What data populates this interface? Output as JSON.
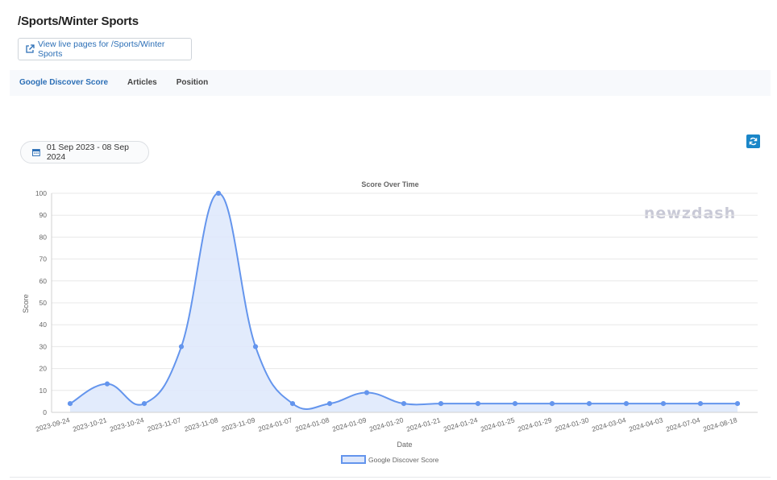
{
  "page": {
    "title": "/Sports/Winter Sports",
    "live_button_label": "View live pages for /Sports/Winter Sports"
  },
  "tabs": [
    {
      "label": "Google Discover Score",
      "active": true
    },
    {
      "label": "Articles",
      "active": false
    },
    {
      "label": "Position",
      "active": false
    }
  ],
  "date_range": "01 Sep 2023 - 08 Sep 2024",
  "watermark": "newzdash",
  "colors": {
    "accent": "#2c6fb6",
    "series_line": "#6495ed",
    "series_fill": "#dde7fb",
    "refresh_button": "#1a86c8"
  },
  "icons": {
    "live_button": "external-link-icon",
    "date_chip": "calendar-icon",
    "refresh": "refresh-icon"
  },
  "chart_data": {
    "type": "area",
    "title": "Score Over Time",
    "xlabel": "Date",
    "ylabel": "Score",
    "ylim": [
      0,
      100
    ],
    "yticks": [
      0,
      10,
      20,
      30,
      40,
      50,
      60,
      70,
      80,
      90,
      100
    ],
    "grid": true,
    "legend_position": "bottom",
    "categories": [
      "2023-09-24",
      "2023-10-21",
      "2023-10-24",
      "2023-11-07",
      "2023-11-08",
      "2023-11-09",
      "2024-01-07",
      "2024-01-08",
      "2024-01-09",
      "2024-01-20",
      "2024-01-21",
      "2024-01-24",
      "2024-01-25",
      "2024-01-29",
      "2024-01-30",
      "2024-03-04",
      "2024-04-03",
      "2024-07-04",
      "2024-08-18"
    ],
    "series": [
      {
        "name": "Google Discover Score",
        "values": [
          4,
          13,
          4,
          30,
          100,
          30,
          4,
          4,
          9,
          4,
          4,
          4,
          4,
          4,
          4,
          4,
          4,
          4,
          4
        ]
      }
    ]
  }
}
